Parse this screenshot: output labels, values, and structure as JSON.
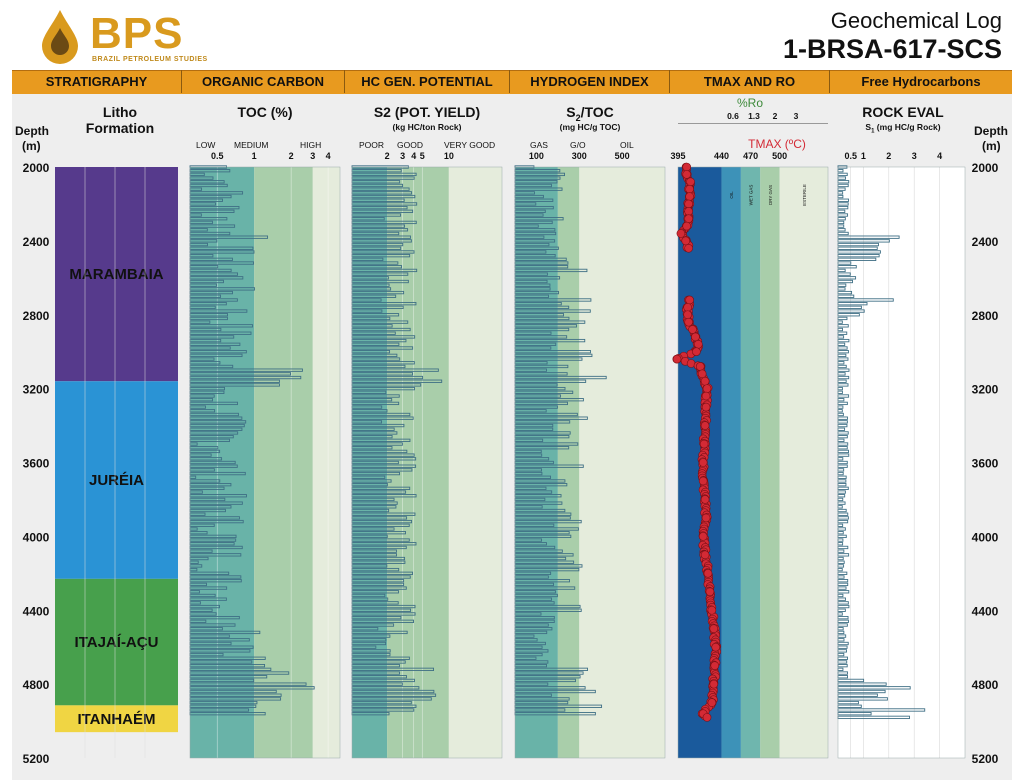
{
  "header": {
    "logo_text": "BPS",
    "logo_sub": "BRAZIL PETROLEUM STUDIES",
    "title_top": "Geochemical Log",
    "title_main": "1-BRSA-617-SCS"
  },
  "sections": [
    "STRATIGRAPHY",
    "ORGANIC CARBON",
    "HC GEN. POTENTIAL",
    "HYDROGEN INDEX",
    "TMAX AND RO",
    "Free Hydrocarbons"
  ],
  "tracks": {
    "depth_label": "Depth",
    "depth_unit": "(m)",
    "litho_title": "Litho",
    "litho_sub": "Formation",
    "toc_title": "TOC (%)",
    "toc_zones": [
      "LOW",
      "MEDIUM",
      "HIGH"
    ],
    "toc_ticks": [
      "0.5",
      "1",
      "2",
      "3",
      "4"
    ],
    "s2_title": "S2 (POT. YIELD)",
    "s2_sub": "(kg HC/ton Rock)",
    "s2_zones": [
      "POOR",
      "GOOD",
      "VERY GOOD"
    ],
    "s2_ticks": [
      "2",
      "3",
      "4",
      "5",
      "10"
    ],
    "hi_title_a": "S",
    "hi_title_sub": "2",
    "hi_title_b": "/TOC",
    "hi_sub": "(mg HC/g TOC)",
    "hi_zones": [
      "GAS",
      "G/O",
      "OIL"
    ],
    "hi_ticks": [
      "100",
      "300",
      "500"
    ],
    "ro_title": "%Ro",
    "ro_ticks": [
      "0.6",
      "1.3",
      "2",
      "3"
    ],
    "tmax_title": "TMAX (ºC)",
    "tmax_ticks": [
      "395",
      "440",
      "470",
      "500"
    ],
    "tmax_zones": [
      "OIL",
      "WET GAS",
      "DRY GAS",
      "ESTERILE"
    ],
    "rock_title": "ROCK EVAL",
    "rock_sub_a": "S",
    "rock_sub_sub": "1",
    "rock_sub_b": " (mg HC/g Rock)",
    "rock_ticks": [
      "0.5",
      "1",
      "2",
      "3",
      "4"
    ]
  },
  "depth_ticks": [
    "2000",
    "2400",
    "2800",
    "3200",
    "3600",
    "4000",
    "4400",
    "4800",
    "5200"
  ],
  "formations": [
    {
      "name": "MARAMBAIA",
      "top": 2000,
      "base": 3160,
      "color": "#563a8c"
    },
    {
      "name": "JURÉIA",
      "top": 3160,
      "base": 4230,
      "color": "#2a93d5"
    },
    {
      "name": "ITAJAÍ-AÇU",
      "top": 4230,
      "base": 4915,
      "color": "#47a04c"
    },
    {
      "name": "ITANHAÉM",
      "top": 4915,
      "base": 5060,
      "color": "#f0d543"
    }
  ],
  "colors": {
    "header_bar": "#e89a1f",
    "low_zone": "#69b3a8",
    "mid_zone": "#a9ceaa",
    "high_zone": "#e5ecdc",
    "bars": "#3f6f85",
    "tmax_immature": "#1a5a9c",
    "tmax_oil": "#3d92b8",
    "tmax_wetgas": "#6fb6ae",
    "tmax_drygas": "#a9ceaa",
    "tmax_sterile": "#e5ecdc",
    "tmax_point": "#d32a35",
    "ro_label": "#3d8a3a",
    "tmax_label": "#d32a35"
  },
  "chart_data": {
    "type": "well-log",
    "depth_range": [
      2000,
      5200
    ],
    "depth_unit": "m",
    "sample_interval_m": 20,
    "toc_percent": {
      "scale": "log",
      "range": [
        0.3,
        5
      ],
      "samples": [
        {
          "depth_range": [
            2000,
            2380
          ],
          "typical": 0.6
        },
        {
          "depth_range": [
            2380,
            2400
          ],
          "typical": 1.3
        },
        {
          "depth_range": [
            2400,
            3100
          ],
          "typical": 0.7
        },
        {
          "depth_range": [
            3100,
            3200
          ],
          "typical": 1.7,
          "max": 3.0
        },
        {
          "depth_range": [
            3200,
            4480
          ],
          "typical": 0.6
        },
        {
          "depth_range": [
            4480,
            4720
          ],
          "typical": 1.0
        },
        {
          "depth_range": [
            4720,
            4920
          ],
          "typical": 1.6,
          "max": 3.5
        },
        {
          "depth_range": [
            4920,
            4980
          ],
          "typical": 0.9
        }
      ]
    },
    "s2_kg_hc_ton_rock": {
      "scale": "log",
      "range": [
        0.8,
        40
      ],
      "samples": [
        {
          "depth_range": [
            2000,
            3100
          ],
          "typical": 3
        },
        {
          "depth_range": [
            3100,
            3200
          ],
          "typical": 5,
          "max": 9
        },
        {
          "depth_range": [
            3200,
            4480
          ],
          "typical": 3
        },
        {
          "depth_range": [
            4480,
            4720
          ],
          "typical": 2.5
        },
        {
          "depth_range": [
            4720,
            4920
          ],
          "typical": 4,
          "max": 8
        },
        {
          "depth_range": [
            4920,
            4980
          ],
          "typical": 3
        }
      ]
    },
    "hydrogen_index_mg_hc_g_toc": {
      "range": [
        0,
        700
      ],
      "samples": [
        {
          "depth_range": [
            2000,
            2380
          ],
          "typical": 160
        },
        {
          "depth_range": [
            2380,
            2720
          ],
          "typical": 240
        },
        {
          "depth_range": [
            2720,
            3220
          ],
          "typical": 260,
          "max": 430
        },
        {
          "depth_range": [
            3220,
            3500
          ],
          "typical": 230,
          "max": 340
        },
        {
          "depth_range": [
            3500,
            4480
          ],
          "typical": 220
        },
        {
          "depth_range": [
            4480,
            4720
          ],
          "typical": 120
        },
        {
          "depth_range": [
            4720,
            4920
          ],
          "typical": 260
        },
        {
          "depth_range": [
            4920,
            4980
          ],
          "typical": 300,
          "max": 500
        }
      ]
    },
    "tmax_celsius": {
      "range": [
        395,
        550
      ],
      "zone_boundaries": [
        440,
        460,
        480,
        500
      ],
      "zones": [
        "OIL",
        "WET GAS",
        "DRY GAS",
        "ESTERILE"
      ],
      "points": [
        [
          2000,
          404
        ],
        [
          2040,
          404
        ],
        [
          2080,
          408
        ],
        [
          2120,
          407
        ],
        [
          2160,
          407
        ],
        [
          2200,
          406
        ],
        [
          2240,
          406
        ],
        [
          2280,
          406
        ],
        [
          2320,
          404
        ],
        [
          2360,
          398
        ],
        [
          2400,
          403
        ],
        [
          2440,
          406
        ],
        [
          2720,
          407
        ],
        [
          2760,
          405
        ],
        [
          2800,
          405
        ],
        [
          2840,
          406
        ],
        [
          2880,
          410
        ],
        [
          2920,
          413
        ],
        [
          2960,
          416
        ],
        [
          3000,
          414
        ],
        [
          3040,
          394
        ],
        [
          3080,
          418
        ],
        [
          3120,
          420
        ],
        [
          3160,
          423
        ],
        [
          3200,
          425
        ],
        [
          3240,
          424
        ],
        [
          3300,
          424
        ],
        [
          3400,
          423
        ],
        [
          3500,
          422
        ],
        [
          3600,
          421
        ],
        [
          3700,
          421
        ],
        [
          3800,
          423
        ],
        [
          3900,
          424
        ],
        [
          4000,
          421
        ],
        [
          4100,
          423
        ],
        [
          4200,
          426
        ],
        [
          4300,
          428
        ],
        [
          4400,
          430
        ],
        [
          4500,
          432
        ],
        [
          4600,
          434
        ],
        [
          4700,
          433
        ],
        [
          4800,
          432
        ],
        [
          4900,
          430
        ],
        [
          4960,
          421
        ],
        [
          4980,
          425
        ]
      ]
    },
    "s1_mg_hc_g_rock": {
      "range": [
        0,
        5
      ],
      "samples": [
        {
          "depth_range": [
            2000,
            2380
          ],
          "typical": 0.3
        },
        {
          "depth_range": [
            2380,
            2520
          ],
          "typical": 1.2,
          "max": 2.6
        },
        {
          "depth_range": [
            2520,
            2720
          ],
          "typical": 0.5
        },
        {
          "depth_range": [
            2720,
            2820
          ],
          "typical": 1.5,
          "max": 2.2
        },
        {
          "depth_range": [
            2820,
            4780
          ],
          "typical": 0.3
        },
        {
          "depth_range": [
            4780,
            4900
          ],
          "typical": 1.5,
          "max": 2.9
        },
        {
          "depth_range": [
            4900,
            4990
          ],
          "typical": 1.2,
          "max": 3.6
        }
      ]
    }
  }
}
